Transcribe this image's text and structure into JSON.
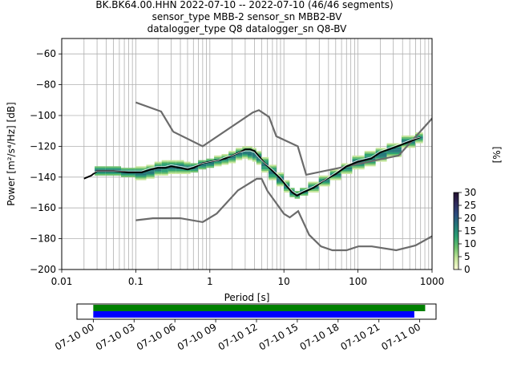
{
  "header": {
    "line1": "BK.BK64.00.HHN   2022-07-10 -- 2022-07-10  (46/46 segments)",
    "line2": "sensor_type MBB-2 sensor_sn MBB2-BV",
    "line3": "datalogger_type Q8 datalogger_sn Q8-BV"
  },
  "chart_data": [
    {
      "type": "line",
      "xlabel": "Period [s]",
      "ylabel": "Power [m²/s⁴/Hz] [dB]",
      "xscale": "log",
      "xlim": [
        0.01,
        1000
      ],
      "ylim": [
        -200,
        -50
      ],
      "x_ticks": [
        "0.01",
        "0.1",
        "1",
        "10",
        "100",
        "1000"
      ],
      "x_tick_values": [
        0.01,
        0.1,
        1,
        10,
        100,
        1000
      ],
      "y_ticks": [
        "−60",
        "−80",
        "−100",
        "−120",
        "−140",
        "−160",
        "−180",
        "−200"
      ],
      "y_tick_values": [
        -60,
        -80,
        -100,
        -120,
        -140,
        -160,
        -180,
        -200
      ],
      "grid": true,
      "colors": {
        "model": "#6b6b6b",
        "mode": "#000000",
        "mean": "#ffffff"
      },
      "colorbar": {
        "label": "[%]",
        "range": [
          0,
          30
        ],
        "ticks": [
          "0",
          "5",
          "10",
          "15",
          "20",
          "25",
          "30"
        ],
        "colormap": [
          "#fbfbd6",
          "#c6e59b",
          "#6cc06c",
          "#2a9f72",
          "#237778",
          "#2b4c7e",
          "#302a5c",
          "#210f2e"
        ]
      },
      "series": [
        {
          "role": "high-noise-model",
          "x": [
            0.1,
            0.22,
            0.32,
            0.8,
            3.8,
            4.6,
            6.3,
            7.9,
            15.4,
            20,
            354.8,
            10000
          ],
          "y": [
            -91.5,
            -97.4,
            -110.5,
            -120,
            -98,
            -96.5,
            -101,
            -113.5,
            -120,
            -138.5,
            -126,
            -48.5
          ]
        },
        {
          "role": "low-noise-model",
          "x": [
            0.1,
            0.17,
            0.4,
            0.8,
            1.24,
            2.4,
            4.3,
            5,
            6,
            10,
            12,
            15.6,
            21.9,
            31.6,
            45,
            70,
            101,
            154,
            328,
            600,
            10000
          ],
          "y": [
            -168,
            -166.7,
            -166.7,
            -169.2,
            -163.7,
            -148.6,
            -141.1,
            -141.1,
            -149,
            -163.8,
            -166.2,
            -162.1,
            -177.5,
            -185,
            -187.5,
            -187.5,
            -185,
            -185,
            -187.5,
            -184.4,
            -151.5
          ]
        },
        {
          "role": "mode",
          "x": [
            0.02,
            0.025,
            0.03,
            0.05,
            0.08,
            0.12,
            0.16,
            0.2,
            0.25,
            0.3,
            0.4,
            0.5,
            0.6,
            0.8,
            1.0,
            1.3,
            1.6,
            2.0,
            2.5,
            3.0,
            3.5,
            4.0,
            4.5,
            5.5,
            7.0,
            9.0,
            11.0,
            13.0,
            15.0,
            18.0,
            25.0,
            35.0,
            50.0,
            70.0,
            100.0,
            150.0,
            200.0,
            300.0,
            500.0,
            700.0
          ],
          "y": [
            -141,
            -139,
            -136,
            -136,
            -137,
            -137,
            -135,
            -134,
            -134,
            -133,
            -134,
            -135,
            -134,
            -131,
            -130,
            -129,
            -128,
            -126,
            -124,
            -122,
            -122,
            -123,
            -126,
            -131,
            -136,
            -141,
            -146,
            -150,
            -152,
            -150,
            -147,
            -142,
            -138,
            -133,
            -130,
            -128,
            -124,
            -121,
            -117,
            -114
          ]
        },
        {
          "role": "mean",
          "x": [
            0.02,
            0.03,
            0.05,
            0.08,
            0.12,
            0.16,
            0.2,
            0.25,
            0.3,
            0.4,
            0.5,
            0.6,
            0.8,
            1.0,
            1.3,
            1.6,
            2.0,
            2.5,
            3.0,
            3.5,
            4.0,
            4.5,
            5.5,
            7.0,
            9.0,
            11.0,
            13.0,
            15.0,
            18.0,
            25.0,
            35.0,
            50.0,
            70.0,
            100.0,
            150.0,
            200.0,
            300.0,
            500.0,
            700.0
          ],
          "y": [
            -140,
            -136,
            -136,
            -136,
            -136,
            -134,
            -133,
            -133,
            -132,
            -133,
            -134,
            -133,
            -131,
            -130,
            -129,
            -127,
            -126,
            -124,
            -123,
            -123,
            -124,
            -127,
            -131,
            -135,
            -140,
            -145,
            -149,
            -151,
            -149,
            -146,
            -142,
            -137,
            -132,
            -129,
            -127,
            -123,
            -120,
            -116,
            -114
          ]
        },
        {
          "role": "histogram-band",
          "x": [
            0.03,
            0.05,
            0.08,
            0.12,
            0.16,
            0.2,
            0.25,
            0.3,
            0.4,
            0.5,
            0.6,
            0.8,
            1.0,
            1.3,
            1.6,
            2.0,
            2.5,
            3.0,
            3.5,
            4.0,
            4.5,
            5.5,
            7.0,
            9.0,
            11.0,
            13.0,
            15.0,
            18.0,
            25.0,
            35.0,
            50.0,
            70.0,
            100.0,
            150.0,
            200.0,
            300.0,
            500.0,
            700.0
          ],
          "low": [
            -139,
            -139,
            -140,
            -142,
            -141,
            -139,
            -139,
            -138,
            -138,
            -138,
            -137,
            -135,
            -134,
            -133,
            -132,
            -131,
            -129,
            -128,
            -129,
            -130,
            -132,
            -137,
            -142,
            -146,
            -150,
            -153,
            -154,
            -152,
            -150,
            -146,
            -142,
            -138,
            -135,
            -133,
            -130,
            -127,
            -121,
            -118
          ],
          "high": [
            -133,
            -133,
            -134,
            -133,
            -132,
            -130,
            -129,
            -129,
            -129,
            -130,
            -131,
            -129,
            -128,
            -126,
            -125,
            -123,
            -121,
            -120,
            -120,
            -121,
            -123,
            -127,
            -132,
            -137,
            -142,
            -147,
            -149,
            -147,
            -143,
            -139,
            -135,
            -131,
            -126,
            -123,
            -121,
            -118,
            -113,
            -111
          ]
        }
      ]
    },
    {
      "type": "timeline",
      "x_tick_labels": [
        "07-10 00",
        "07-10 03",
        "07-10 06",
        "07-10 09",
        "07-10 12",
        "07-10 15",
        "07-10 18",
        "07-10 21",
        "07-11 00"
      ],
      "x_tick_hours": [
        0,
        3,
        6,
        9,
        12,
        15,
        18,
        21,
        24
      ],
      "xlim_hours": [
        -1.2,
        25.2
      ],
      "bars": [
        {
          "color": "#008000",
          "start_hour": 0,
          "end_hour": 24.4
        },
        {
          "color": "#0000ff",
          "start_hour": 0,
          "end_hour": 23.6
        }
      ]
    }
  ]
}
